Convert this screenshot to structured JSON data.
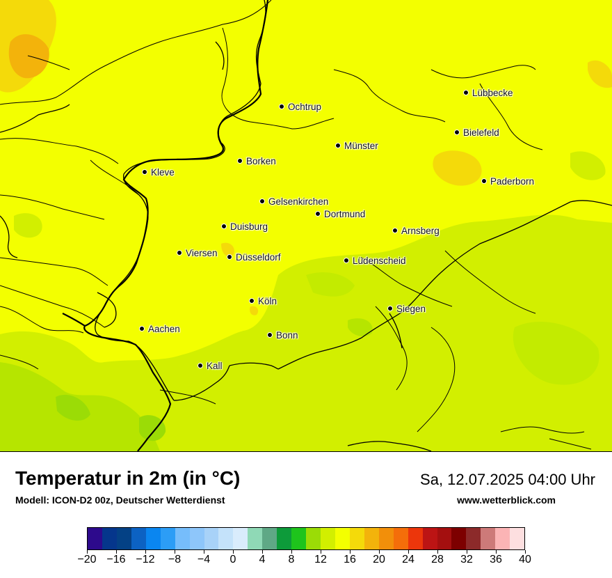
{
  "map": {
    "cities": [
      {
        "name": "Lübbecke"
      },
      {
        "name": "Ochtrup"
      },
      {
        "name": "Bielefeld"
      },
      {
        "name": "Münster"
      },
      {
        "name": "Borken"
      },
      {
        "name": "Kleve"
      },
      {
        "name": "Paderborn"
      },
      {
        "name": "Gelsenkirchen"
      },
      {
        "name": "Dortmund"
      },
      {
        "name": "Duisburg"
      },
      {
        "name": "Arnsberg"
      },
      {
        "name": "Viersen"
      },
      {
        "name": "Düsseldorf"
      },
      {
        "name": "Lüdenscheid"
      },
      {
        "name": "Köln"
      },
      {
        "name": "Siegen"
      },
      {
        "name": "Aachen"
      },
      {
        "name": "Bonn"
      },
      {
        "name": "Kall"
      }
    ]
  },
  "footer": {
    "title": "Temperatur in 2m (in °C)",
    "model": "Modell: ICON-D2 00z, Deutscher Wetterdienst",
    "datetime": "Sa, 12.07.2025 04:00 Uhr",
    "site": "www.wetterblick.com"
  },
  "legend": {
    "colors": [
      "#2d0a8c",
      "#05368c",
      "#044185",
      "#0c62c3",
      "#0a86f0",
      "#2c9df6",
      "#76bdfb",
      "#8ec6fa",
      "#a8d2f8",
      "#c4e2fa",
      "#d9ecfc",
      "#8fd9b6",
      "#5fa886",
      "#0d9b3a",
      "#1ec41c",
      "#9bdc06",
      "#d2ef00",
      "#f3ff00",
      "#f4da0a",
      "#f3b30b",
      "#f28f0a",
      "#f46e0a",
      "#ec360b",
      "#bc1414",
      "#a40f0f",
      "#7d0000",
      "#8c2a2a",
      "#cd7a79",
      "#fbb4b5",
      "#fddfe0"
    ],
    "ticks": [
      "−20",
      "−16",
      "−12",
      "−8",
      "−4",
      "0",
      "4",
      "8",
      "12",
      "16",
      "20",
      "24",
      "28",
      "32",
      "36",
      "40"
    ]
  }
}
